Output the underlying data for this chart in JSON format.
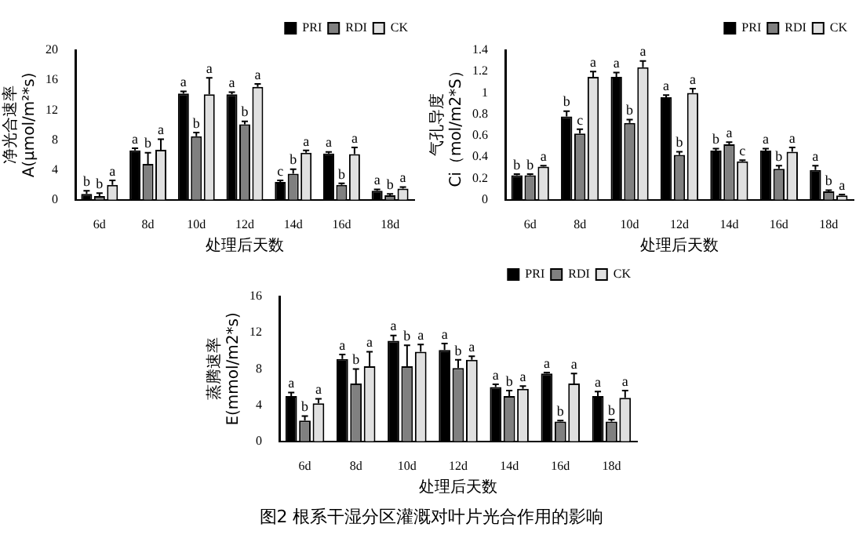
{
  "chart_data": [
    {
      "type": "bar",
      "xlabel": "处理后天数",
      "ylabel": "净光合速率 A(μmol/m²*s)",
      "categories": [
        "6d",
        "8d",
        "10d",
        "12d",
        "14d",
        "16d",
        "18d"
      ],
      "ylim": [
        0,
        20
      ],
      "yticks": [
        0,
        4,
        8,
        12,
        16,
        20
      ],
      "grid": false,
      "legend": "top right",
      "series": [
        {
          "name": "PRI",
          "color": "#000000",
          "values": [
            0.8,
            6.6,
            14.2,
            14.1,
            2.4,
            6.2,
            1.2
          ],
          "errors": [
            0.4,
            0.3,
            0.3,
            0.3,
            0.2,
            0.2,
            0.2
          ],
          "value_labels": [
            "b",
            "a",
            "a",
            "a",
            "c",
            "a",
            "a"
          ]
        },
        {
          "name": "RDI",
          "color": "#808080",
          "values": [
            0.5,
            4.8,
            8.5,
            10.1,
            3.5,
            2.0,
            0.6
          ],
          "errors": [
            0.4,
            1.5,
            0.5,
            0.4,
            0.6,
            0.2,
            0.2
          ],
          "value_labels": [
            "b",
            "b",
            "b",
            "b",
            "b",
            "b",
            "b"
          ]
        },
        {
          "name": "CK",
          "color": "#e0e0e0",
          "values": [
            2.0,
            6.7,
            14.1,
            15.1,
            6.3,
            6.1,
            1.5
          ],
          "errors": [
            0.6,
            1.4,
            2.2,
            0.4,
            0.3,
            0.9,
            0.2
          ],
          "value_labels": [
            "a",
            "a",
            "a",
            "a",
            "a",
            "a",
            "a"
          ]
        }
      ]
    },
    {
      "type": "bar",
      "xlabel": "处理后天数",
      "ylabel": "气孔导度 Ci（mol/m2*S）",
      "categories": [
        "6d",
        "8d",
        "10d",
        "12d",
        "14d",
        "16d",
        "18d"
      ],
      "ylim": [
        0,
        1.4
      ],
      "yticks": [
        0,
        0.2,
        0.4,
        0.6,
        0.8,
        1,
        1.2,
        1.4
      ],
      "grid": false,
      "legend": "top right",
      "series": [
        {
          "name": "PRI",
          "color": "#000000",
          "values": [
            0.23,
            0.78,
            1.15,
            0.96,
            0.46,
            0.46,
            0.28
          ],
          "errors": [
            0.01,
            0.05,
            0.04,
            0.02,
            0.02,
            0.02,
            0.04
          ],
          "value_labels": [
            "b",
            "b",
            "a",
            "a",
            "b",
            "a",
            "a"
          ]
        },
        {
          "name": "RDI",
          "color": "#808080",
          "values": [
            0.23,
            0.62,
            0.72,
            0.42,
            0.52,
            0.29,
            0.08
          ],
          "errors": [
            0.01,
            0.04,
            0.03,
            0.03,
            0.02,
            0.03,
            0.01
          ],
          "value_labels": [
            "b",
            "c",
            "b",
            "b",
            "a",
            "b",
            "b"
          ]
        },
        {
          "name": "CK",
          "color": "#e0e0e0",
          "values": [
            0.31,
            1.15,
            1.24,
            1.0,
            0.36,
            0.45,
            0.04
          ],
          "errors": [
            0.01,
            0.05,
            0.06,
            0.04,
            0.01,
            0.04,
            0.01
          ],
          "value_labels": [
            "a",
            "a",
            "a",
            "a",
            "c",
            "a",
            "a"
          ]
        }
      ]
    },
    {
      "type": "bar",
      "xlabel": "处理后天数",
      "ylabel": "蒸腾速率 E(mmol/m2*s)",
      "categories": [
        "6d",
        "8d",
        "10d",
        "12d",
        "14d",
        "16d",
        "18d"
      ],
      "ylim": [
        0,
        16
      ],
      "yticks": [
        0,
        4,
        8,
        12,
        16
      ],
      "grid": false,
      "legend": "top right",
      "annotations": [
        "图2 根系干湿分区灌溉对叶片光合作用的影响"
      ],
      "series": [
        {
          "name": "PRI",
          "color": "#000000",
          "values": [
            5.0,
            9.1,
            11.1,
            10.1,
            6.0,
            7.5,
            5.0
          ],
          "errors": [
            0.4,
            0.5,
            0.6,
            0.7,
            0.3,
            0.1,
            0.5
          ],
          "value_labels": [
            "a",
            "a",
            "a",
            "a",
            "a",
            "a",
            "a"
          ]
        },
        {
          "name": "RDI",
          "color": "#808080",
          "values": [
            2.3,
            6.4,
            8.3,
            8.1,
            5.0,
            2.2,
            2.2
          ],
          "errors": [
            0.5,
            1.6,
            2.3,
            0.9,
            0.6,
            0.1,
            0.2
          ],
          "value_labels": [
            "b",
            "b",
            "b",
            "b",
            "b",
            "b",
            "b"
          ]
        },
        {
          "name": "CK",
          "color": "#e0e0e0",
          "values": [
            4.2,
            8.3,
            9.9,
            9.0,
            5.8,
            6.4,
            4.8
          ],
          "errors": [
            0.5,
            1.6,
            0.8,
            0.4,
            0.3,
            1.1,
            0.8
          ],
          "value_labels": [
            "a",
            "a",
            "a",
            "a",
            "a",
            "a",
            "a"
          ]
        }
      ]
    }
  ]
}
